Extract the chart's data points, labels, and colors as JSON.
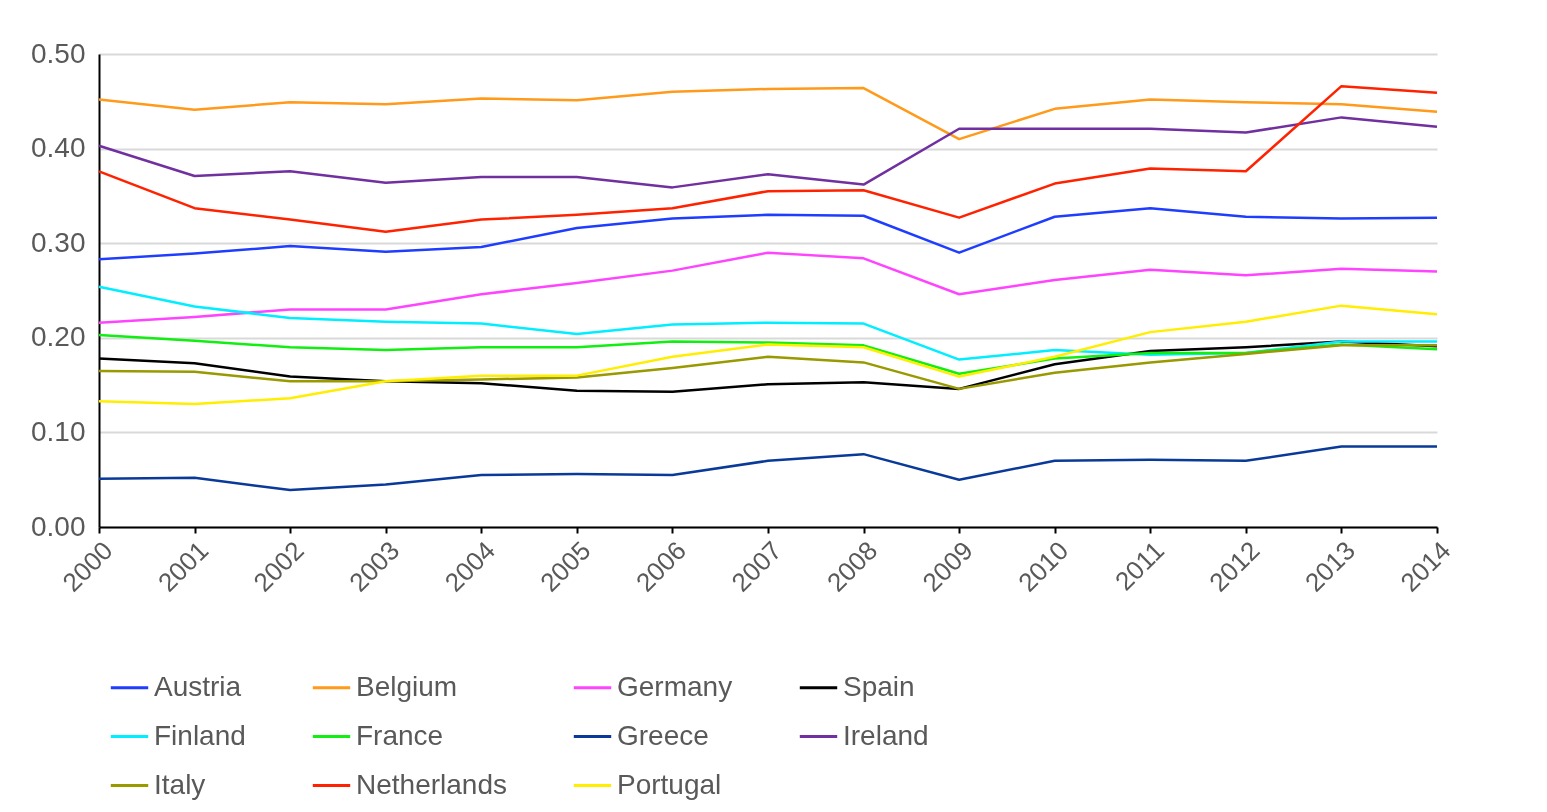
{
  "chart_data": {
    "type": "line",
    "categories": [
      "2000",
      "2001",
      "2002",
      "2003",
      "2004",
      "2005",
      "2006",
      "2007",
      "2008",
      "2009",
      "2010",
      "2011",
      "2012",
      "2013",
      "2014"
    ],
    "ylim": [
      0,
      0.5
    ],
    "yticks": [
      {
        "value": 0,
        "label": "0.00"
      },
      {
        "value": 0.1,
        "label": "0.10"
      },
      {
        "value": 0.2,
        "label": "0.20"
      },
      {
        "value": 0.3,
        "label": "0.30"
      },
      {
        "value": 0.4,
        "label": "0.40"
      },
      {
        "value": 0.5,
        "label": "0.50"
      }
    ],
    "grid": "y",
    "legend": "bottom",
    "marker": "none",
    "line_style": "solid",
    "series": [
      {
        "name": "Austria",
        "color": "#1f3dff",
        "values": [
          0.283,
          0.289,
          0.297,
          0.291,
          0.296,
          0.316,
          0.326,
          0.33,
          0.329,
          0.29,
          0.328,
          0.337,
          0.328,
          0.326,
          0.327
        ]
      },
      {
        "name": "Belgium",
        "color": "#ff9a1a",
        "values": [
          0.452,
          0.441,
          0.449,
          0.447,
          0.453,
          0.451,
          0.46,
          0.463,
          0.464,
          0.41,
          0.442,
          0.452,
          0.449,
          0.447,
          0.439
        ]
      },
      {
        "name": "Germany",
        "color": "#ff44ff",
        "values": [
          0.216,
          0.222,
          0.23,
          0.23,
          0.246,
          0.258,
          0.271,
          0.29,
          0.284,
          0.246,
          0.261,
          0.272,
          0.266,
          0.273,
          0.27
        ]
      },
      {
        "name": "Spain",
        "color": "#000000",
        "values": [
          0.178,
          0.173,
          0.159,
          0.154,
          0.152,
          0.144,
          0.143,
          0.151,
          0.153,
          0.146,
          0.172,
          0.186,
          0.19,
          0.196,
          0.191
        ]
      },
      {
        "name": "Finland",
        "color": "#00eeff",
        "values": [
          0.254,
          0.233,
          0.221,
          0.217,
          0.215,
          0.204,
          0.214,
          0.216,
          0.215,
          0.177,
          0.187,
          0.182,
          0.184,
          0.196,
          0.196
        ]
      },
      {
        "name": "France",
        "color": "#11ee11",
        "values": [
          0.203,
          0.197,
          0.19,
          0.187,
          0.19,
          0.19,
          0.196,
          0.195,
          0.192,
          0.162,
          0.178,
          0.184,
          0.184,
          0.193,
          0.188
        ]
      },
      {
        "name": "Greece",
        "color": "#0a3a99",
        "values": [
          0.051,
          0.052,
          0.039,
          0.045,
          0.055,
          0.056,
          0.055,
          0.07,
          0.077,
          0.05,
          0.07,
          0.071,
          0.07,
          0.085,
          0.085
        ]
      },
      {
        "name": "Ireland",
        "color": "#7030a0",
        "values": [
          0.403,
          0.371,
          0.376,
          0.364,
          0.37,
          0.37,
          0.359,
          0.373,
          0.362,
          0.421,
          0.421,
          0.421,
          0.417,
          0.433,
          0.423
        ]
      },
      {
        "name": "Italy",
        "color": "#999900",
        "values": [
          0.165,
          0.164,
          0.154,
          0.154,
          0.156,
          0.158,
          0.168,
          0.18,
          0.174,
          0.146,
          0.163,
          0.174,
          0.183,
          0.192,
          0.192
        ]
      },
      {
        "name": "Netherlands",
        "color": "#ff2200",
        "values": [
          0.376,
          0.337,
          0.325,
          0.312,
          0.325,
          0.33,
          0.337,
          0.355,
          0.356,
          0.327,
          0.363,
          0.379,
          0.376,
          0.466,
          0.459
        ]
      },
      {
        "name": "Portugal",
        "color": "#ffee00",
        "values": [
          0.133,
          0.13,
          0.136,
          0.154,
          0.16,
          0.16,
          0.18,
          0.193,
          0.19,
          0.159,
          0.18,
          0.206,
          0.217,
          0.234,
          0.225
        ]
      }
    ]
  }
}
